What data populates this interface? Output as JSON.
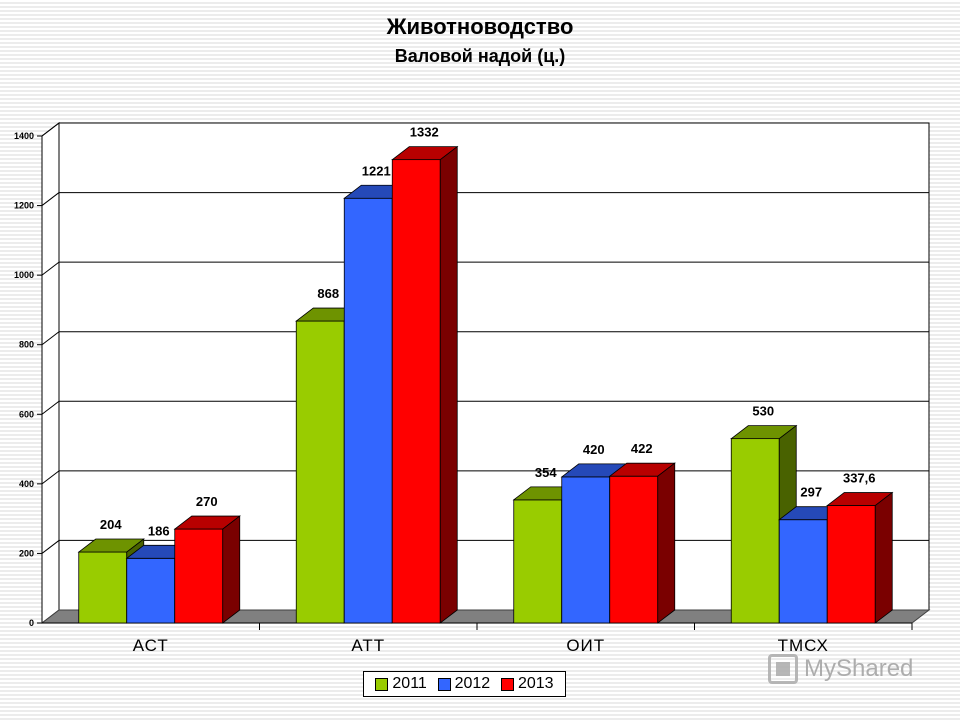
{
  "chart_data": {
    "type": "bar",
    "title": "Животноводство",
    "subtitle": "Валовой надой (ц.)",
    "categories": [
      "АСТ",
      "АТТ",
      "ОИТ",
      "ТМСХ"
    ],
    "series": [
      {
        "name": "2011",
        "values": [
          204,
          868,
          354,
          530
        ],
        "labels": [
          "204",
          "868",
          "354",
          "530"
        ],
        "color": "#99cc00"
      },
      {
        "name": "2012",
        "values": [
          186,
          1221,
          420,
          297
        ],
        "labels": [
          "186",
          "1221",
          "420",
          "297"
        ],
        "color": "#3366ff"
      },
      {
        "name": "2013",
        "values": [
          270,
          1332,
          422,
          337.6
        ],
        "labels": [
          "270",
          "1332",
          "422",
          "337,6"
        ],
        "color": "#ff0000"
      }
    ],
    "ylim": [
      0,
      1400
    ],
    "yticks": [
      "0",
      "200",
      "400",
      "600",
      "800",
      "1000",
      "1200",
      "1400"
    ],
    "grid": true,
    "style": "3d",
    "legend_position": "bottom"
  },
  "watermark": {
    "text": "MyShared",
    "icon": "presentation-icon"
  }
}
